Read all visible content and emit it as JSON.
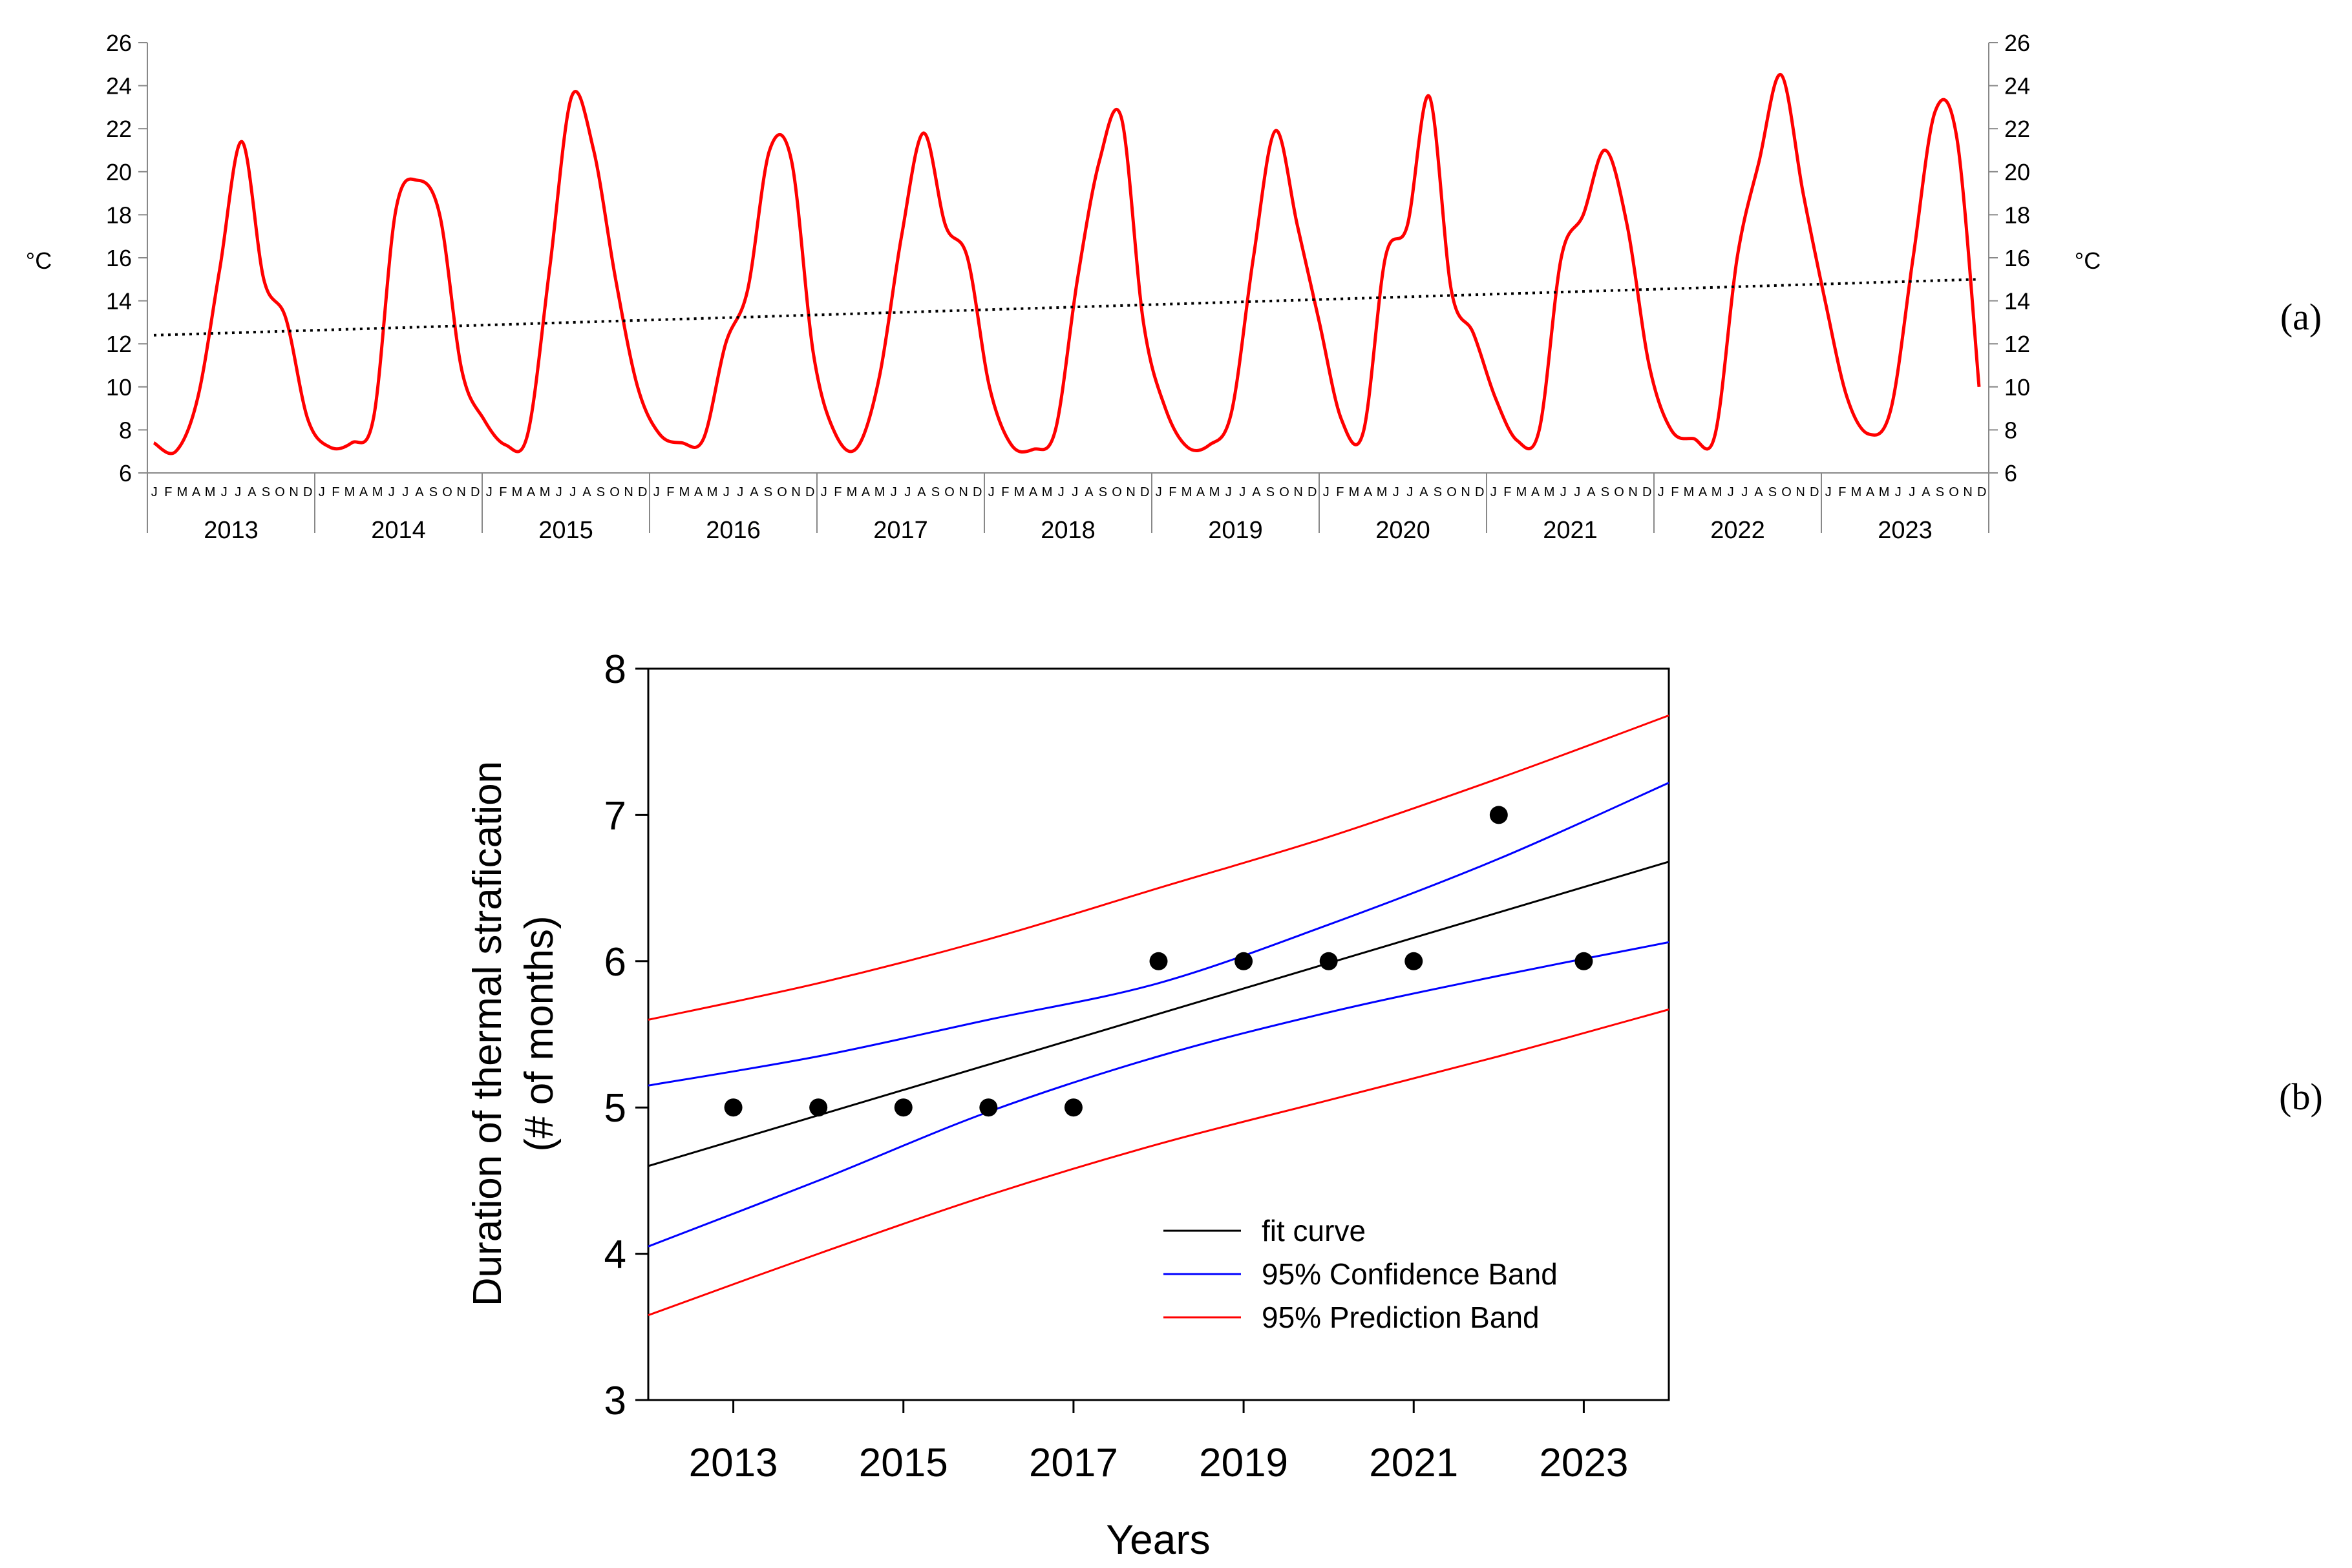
{
  "chart_data": [
    {
      "id": "a",
      "type": "line",
      "panel_label": "(a)",
      "title": "",
      "xlabel": "",
      "ylabel_left": "°C",
      "ylabel_right": "°C",
      "ylim": [
        6,
        26
      ],
      "yticks": [
        "6",
        "8",
        "10",
        "12",
        "14",
        "16",
        "18",
        "20",
        "22",
        "24",
        "26"
      ],
      "grid": false,
      "years": [
        "2013",
        "2014",
        "2015",
        "2016",
        "2017",
        "2018",
        "2019",
        "2020",
        "2021",
        "2022",
        "2023"
      ],
      "month_labels": [
        "J",
        "F",
        "M",
        "A",
        "M",
        "J",
        "J",
        "A",
        "S",
        "O",
        "N",
        "D"
      ],
      "series": [
        {
          "name": "monthly temperature",
          "color": "#ff0000",
          "style": "solid",
          "values": [
            7.4,
            7.0,
            9.5,
            15.5,
            21.4,
            15.0,
            13.2,
            8.5,
            7.2,
            7.4,
            8.6,
            18.2,
            19.6,
            18.0,
            10.8,
            8.5,
            7.3,
            7.8,
            15.5,
            23.5,
            21.0,
            15.0,
            10.0,
            7.8,
            7.4,
            7.6,
            12.0,
            14.5,
            21.0,
            20.5,
            11.5,
            7.8,
            7.2,
            10.5,
            17.0,
            21.8,
            17.5,
            16.0,
            10.0,
            7.3,
            7.1,
            8.0,
            15.0,
            20.5,
            22.5,
            13.0,
            9.0,
            7.2,
            7.3,
            8.8,
            16.0,
            21.9,
            17.5,
            13.0,
            8.5,
            7.9,
            16.0,
            17.5,
            23.5,
            14.5,
            12.5,
            9.5,
            7.5,
            8.0,
            16.0,
            18.0,
            21.0,
            17.5,
            11.0,
            8.0,
            7.6,
            7.8,
            16.0,
            20.5,
            24.5,
            19.0,
            14.0,
            9.5,
            7.8,
            9.0,
            16.0,
            22.8,
            21.5,
            10.0
          ]
        },
        {
          "name": "linear trend",
          "color": "#000000",
          "style": "dotted",
          "start": 12.4,
          "end": 15.0
        }
      ]
    },
    {
      "id": "b",
      "type": "scatter",
      "panel_label": "(b)",
      "title": "",
      "xlabel": "Years",
      "ylabel": [
        "Duration of thermal strafication",
        "(# of months)"
      ],
      "xlim": [
        2012,
        2024
      ],
      "ylim": [
        3,
        8
      ],
      "xticks": [
        "2013",
        "2015",
        "2017",
        "2019",
        "2021",
        "2023"
      ],
      "yticks": [
        "3",
        "4",
        "5",
        "6",
        "7",
        "8"
      ],
      "grid": false,
      "points": {
        "x": [
          2013,
          2014,
          2015,
          2016,
          2017,
          2018,
          2019,
          2020,
          2021,
          2022,
          2023
        ],
        "y": [
          5,
          5,
          5,
          5,
          5,
          6,
          6,
          6,
          6,
          7,
          6
        ],
        "color": "#000000"
      },
      "lines": [
        {
          "name": "fit curve",
          "color": "#000000",
          "x": [
            2012,
            2024
          ],
          "y": [
            4.6,
            6.68
          ]
        },
        {
          "name": "95% Confidence Band",
          "color": "#0000ff",
          "x": [
            2012,
            2014,
            2016,
            2018,
            2020,
            2022,
            2024
          ],
          "y": [
            5.15,
            5.35,
            5.6,
            5.85,
            6.25,
            6.7,
            7.22
          ]
        },
        {
          "name": "95% Confidence Band",
          "color": "#0000ff",
          "x": [
            2012,
            2014,
            2016,
            2018,
            2020,
            2022,
            2024
          ],
          "y": [
            4.05,
            4.5,
            4.97,
            5.35,
            5.65,
            5.9,
            6.13
          ]
        },
        {
          "name": "95% Prediction Band",
          "color": "#ff0000",
          "x": [
            2012,
            2014,
            2016,
            2018,
            2020,
            2022,
            2024
          ],
          "y": [
            5.6,
            5.85,
            6.15,
            6.5,
            6.85,
            7.25,
            7.68
          ]
        },
        {
          "name": "95% Prediction Band",
          "color": "#ff0000",
          "x": [
            2012,
            2014,
            2016,
            2018,
            2020,
            2022,
            2024
          ],
          "y": [
            3.58,
            4.0,
            4.4,
            4.75,
            5.05,
            5.35,
            5.67
          ]
        }
      ],
      "legend": {
        "position": "bottom-right",
        "entries": [
          {
            "label": "fit curve",
            "color": "#000000"
          },
          {
            "label": "95% Confidence Band",
            "color": "#0000ff"
          },
          {
            "label": "95% Prediction Band",
            "color": "#ff0000"
          }
        ]
      }
    }
  ]
}
